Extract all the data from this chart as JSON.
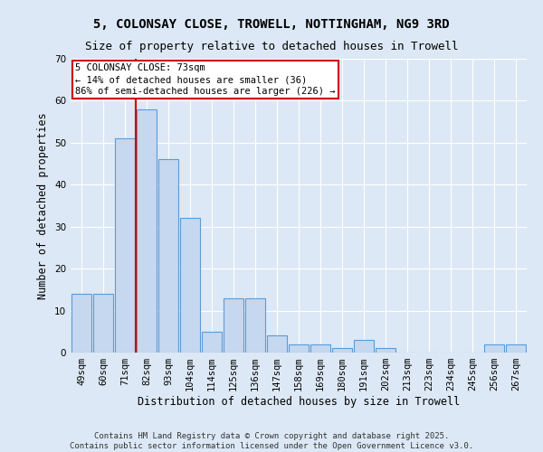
{
  "title_line1": "5, COLONSAY CLOSE, TROWELL, NOTTINGHAM, NG9 3RD",
  "title_line2": "Size of property relative to detached houses in Trowell",
  "xlabel": "Distribution of detached houses by size in Trowell",
  "ylabel": "Number of detached properties",
  "bar_labels": [
    "49sqm",
    "60sqm",
    "71sqm",
    "82sqm",
    "93sqm",
    "104sqm",
    "114sqm",
    "125sqm",
    "136sqm",
    "147sqm",
    "158sqm",
    "169sqm",
    "180sqm",
    "191sqm",
    "202sqm",
    "213sqm",
    "223sqm",
    "234sqm",
    "245sqm",
    "256sqm",
    "267sqm"
  ],
  "bar_values": [
    14,
    14,
    51,
    58,
    46,
    32,
    5,
    13,
    13,
    4,
    2,
    2,
    1,
    3,
    1,
    0,
    0,
    0,
    0,
    2,
    2
  ],
  "bar_color": "#c5d8f0",
  "bar_edge_color": "#5b9bd5",
  "background_color": "#dce8f5",
  "grid_color": "#ffffff",
  "property_line_x": 2.5,
  "annotation_text": "5 COLONSAY CLOSE: 73sqm\n← 14% of detached houses are smaller (36)\n86% of semi-detached houses are larger (226) →",
  "annotation_box_color": "#ffffff",
  "annotation_box_edge": "#cc0000",
  "red_line_color": "#cc0000",
  "ylim": [
    0,
    70
  ],
  "yticks": [
    0,
    10,
    20,
    30,
    40,
    50,
    60,
    70
  ],
  "footer_text": "Contains HM Land Registry data © Crown copyright and database right 2025.\nContains public sector information licensed under the Open Government Licence v3.0.",
  "title_fontsize": 10,
  "subtitle_fontsize": 9,
  "axis_label_fontsize": 8.5,
  "tick_fontsize": 7.5,
  "footer_fontsize": 6.5,
  "annotation_fontsize": 7.5
}
